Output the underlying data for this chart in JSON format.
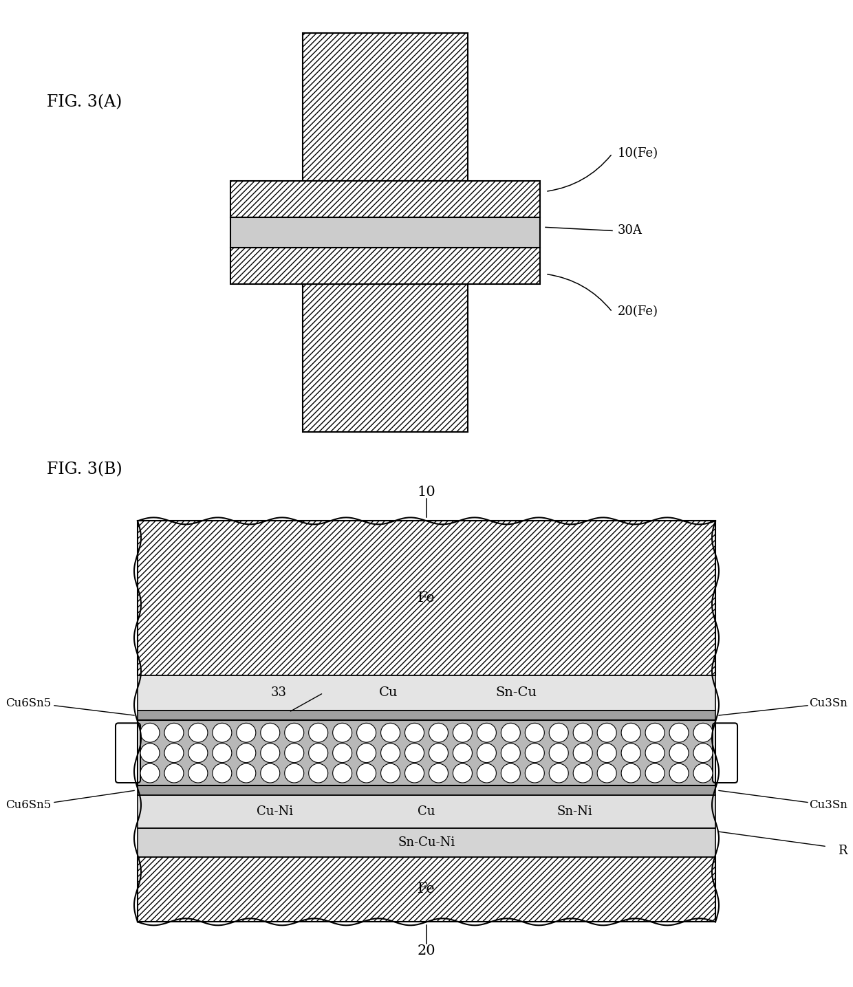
{
  "fig_label_A": "FIG. 3(A)",
  "fig_label_B": "FIG. 3(B)",
  "label_10Fe": "10(Fe)",
  "label_20Fe": "20(Fe)",
  "label_30A": "30A",
  "label_10": "10",
  "label_20": "20",
  "label_Fe_top": "Fe",
  "label_Fe_bottom": "Fe",
  "label_Cu": "Cu",
  "label_Cu2": "Cu",
  "label_Sn_Cu": "Sn-Cu",
  "label_33": "33",
  "label_Cu6Sn5_left1": "Cu6Sn5",
  "label_Cu6Sn5_left2": "Cu6Sn5",
  "label_Cu3Sn_right1": "Cu3Sn",
  "label_Cu3Sn_right2": "Cu3Sn",
  "label_Cu_Ni": "Cu-Ni",
  "label_Sn_Ni": "Sn-Ni",
  "label_Sn_Cu_Ni": "Sn-Cu-Ni",
  "label_R": "R",
  "bg_color": "#ffffff",
  "hatch_fe": "////",
  "hatch_solder": "....",
  "fe_fill": "#ffffff",
  "solder_fill": "#d0d0d0",
  "layer_light": "#e8e8e8",
  "layer_mid": "#c8c8c8",
  "layer_dark": "#b0b0b0"
}
